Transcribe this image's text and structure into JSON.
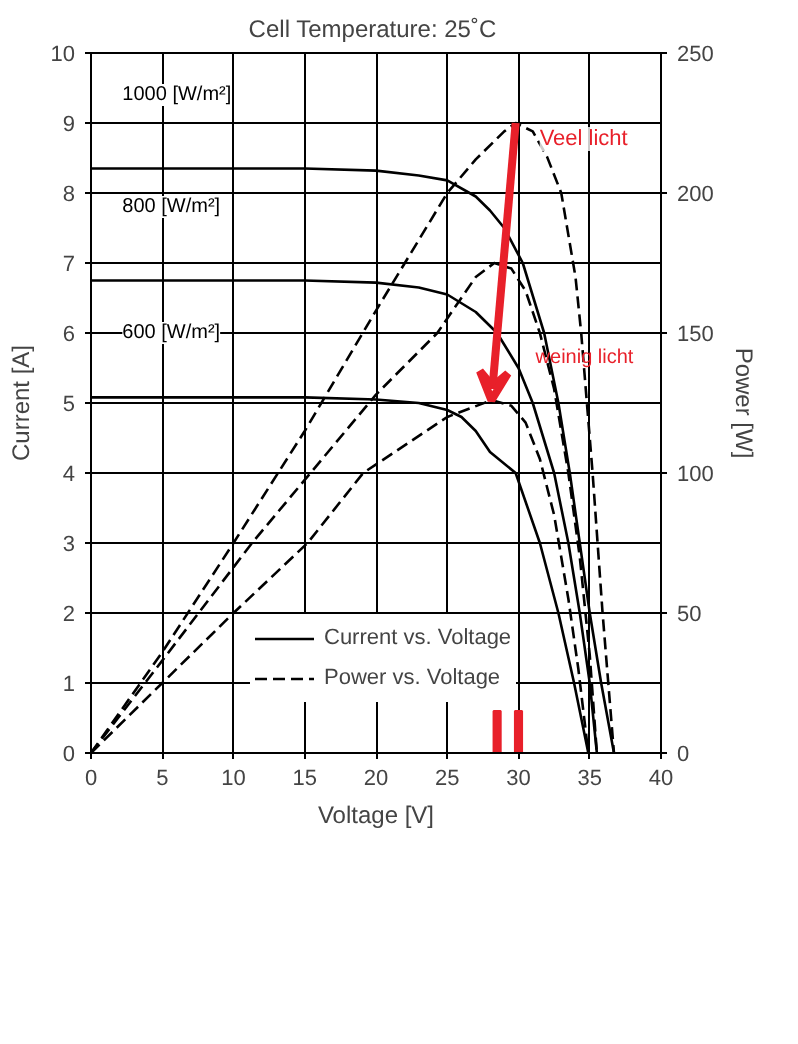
{
  "chart_data": {
    "type": "line",
    "title": "Cell Temperature:  25˚C",
    "xlabel": "Voltage [V]",
    "ylabel": "Current [A]",
    "y2label": "Power [W]",
    "xlim": [
      0,
      40
    ],
    "xticks": [
      0,
      5,
      10,
      15,
      20,
      25,
      30,
      35,
      40
    ],
    "ylim": [
      0,
      10
    ],
    "yticks": [
      0,
      1,
      2,
      3,
      4,
      5,
      6,
      7,
      8,
      9,
      10
    ],
    "y2lim": [
      0,
      250
    ],
    "y2ticks": [
      0,
      50,
      100,
      150,
      200,
      250
    ],
    "grid": true,
    "legend": "bottom",
    "marker": "none",
    "series": [
      {
        "name": "Current vs. Voltage",
        "color": "#000000",
        "line_style": "solid",
        "x": [
          0,
          10,
          15,
          20,
          23,
          25,
          27,
          28,
          29,
          30.3,
          31.8,
          32.8,
          33.6,
          34.3,
          35,
          35.8,
          36.7
        ],
        "values": [
          8.35,
          8.35,
          8.35,
          8.32,
          8.25,
          8.18,
          7.95,
          7.75,
          7.5,
          7.0,
          6.0,
          5.0,
          4.0,
          3.0,
          2.0,
          1.0,
          0
        ]
      },
      {
        "color": "#000000",
        "line_style": "solid",
        "x": [
          0,
          10,
          15,
          20,
          23,
          25,
          27,
          28.5,
          30,
          31,
          32.5,
          33.5,
          34.3,
          35,
          35.5
        ],
        "values": [
          6.75,
          6.75,
          6.75,
          6.72,
          6.65,
          6.55,
          6.3,
          6.0,
          5.5,
          5.0,
          4.0,
          3.0,
          2.0,
          1.0,
          0
        ]
      },
      {
        "color": "#000000",
        "line_style": "solid",
        "x": [
          0,
          10,
          15,
          20,
          23,
          25,
          26,
          27,
          28,
          29.8,
          31.5,
          32.8,
          33.9,
          34.9
        ],
        "values": [
          5.08,
          5.08,
          5.08,
          5.05,
          5.0,
          4.9,
          4.8,
          4.6,
          4.3,
          4.0,
          3.0,
          2.0,
          1.0,
          0
        ]
      },
      {
        "name": "Power vs. Voltage",
        "color": "#000000",
        "line_style": "dashed",
        "axis": "y2",
        "x": [
          0,
          5,
          10,
          15,
          20,
          25,
          27,
          29,
          29.8,
          31,
          32,
          33,
          34,
          34.4,
          35.2,
          35.9,
          36.7
        ],
        "values": [
          0,
          36,
          75,
          115,
          158,
          200,
          212,
          222,
          225,
          222,
          213,
          200,
          170,
          150,
          100,
          50,
          0
        ]
      },
      {
        "color": "#000000",
        "line_style": "dashed",
        "axis": "y2",
        "x": [
          0,
          5,
          11.3,
          20,
          24.3,
          27,
          28.3,
          29.5,
          30.5,
          31.5,
          32.5,
          33.5,
          34.3,
          35,
          35.5
        ],
        "values": [
          0,
          33,
          75,
          128,
          150,
          170,
          175,
          173,
          165,
          150,
          130,
          100,
          70,
          35,
          0
        ]
      },
      {
        "type": "bar",
        "color": "#e8202a",
        "x": [
          28.5,
          30
        ],
        "values": [
          0.6,
          0.6
        ]
      },
      {
        "color": "#000000",
        "line_style": "dashed",
        "axis": "y2",
        "x": [
          0,
          5,
          10,
          15.2,
          19.1,
          25,
          28.1,
          29.5,
          30.5,
          31.5,
          32.5,
          33.5,
          34.2,
          34.9
        ],
        "values": [
          0,
          25,
          50,
          75,
          100,
          120,
          126,
          124,
          118,
          105,
          85,
          55,
          30,
          0
        ]
      }
    ],
    "annotations": [
      "1000 [W/m²]",
      "800 [W/m²]",
      "600 [W/m²]",
      {
        "text": "Veel licht",
        "x": 29.8,
        "y": 9.0
      },
      "weinig licht"
    ]
  }
}
